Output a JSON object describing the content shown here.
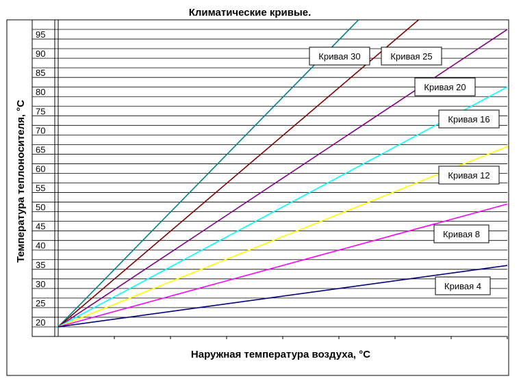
{
  "chart_data": {
    "type": "line",
    "title": "Климатические кривые.",
    "xlabel": "Наружная температура воздуха, °C",
    "ylabel": "Температура теплоносителя, °C",
    "y_ticks": [
      20,
      25,
      30,
      35,
      40,
      45,
      50,
      55,
      60,
      65,
      70,
      75,
      80,
      85,
      90,
      95
    ],
    "xlim": [
      0,
      8
    ],
    "ylim": [
      17.5,
      100
    ],
    "grid": true,
    "legend": "inline labels",
    "series": [
      {
        "name": "Кривая 30",
        "color": "#008080",
        "x": [
          0,
          5.35
        ],
        "y": [
          20,
          100
        ]
      },
      {
        "name": "Кривая 25",
        "color": "#800000",
        "x": [
          0,
          6.42
        ],
        "y": [
          20,
          100
        ]
      },
      {
        "name": "Кривая 20",
        "color": "#800080",
        "x": [
          0,
          8
        ],
        "y": [
          20,
          97.5
        ]
      },
      {
        "name": "Кривая 16",
        "color": "#00FFFF",
        "x": [
          0,
          8
        ],
        "y": [
          20,
          82.5
        ]
      },
      {
        "name": "Кривая 12",
        "color": "#FFFF00",
        "x": [
          0,
          8
        ],
        "y": [
          20,
          67
        ]
      },
      {
        "name": "Кривая 8",
        "color": "#FF00FF",
        "x": [
          0,
          8
        ],
        "y": [
          20,
          52
        ]
      },
      {
        "name": "Кривая 4",
        "color": "#000080",
        "x": [
          0,
          8
        ],
        "y": [
          20,
          36
        ]
      }
    ]
  }
}
